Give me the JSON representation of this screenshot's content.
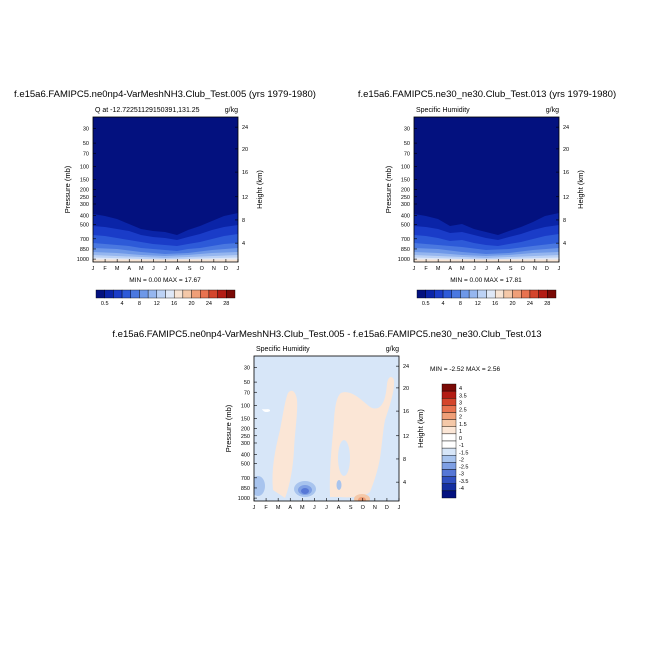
{
  "months": [
    "J",
    "F",
    "M",
    "A",
    "M",
    "J",
    "J",
    "A",
    "S",
    "O",
    "N",
    "D",
    "J"
  ],
  "pressure_ticks": [
    "30",
    "50",
    "70",
    "100",
    "150",
    "200",
    "250",
    "300",
    "400",
    "500",
    "700",
    "850",
    "1000"
  ],
  "height_ticks": [
    "24",
    "20",
    "16",
    "12",
    "8",
    "4"
  ],
  "y_left_label": "Pressure (mb)",
  "y_right_label": "Height (km)",
  "abs_levels": [
    "0.5",
    "4",
    "8",
    "12",
    "16",
    "20",
    "24",
    "28"
  ],
  "abs_colors": [
    "#03117f",
    "#0a24a8",
    "#1a3cc8",
    "#2d5ad8",
    "#4a78e0",
    "#6e98e8",
    "#95b6ef",
    "#bcd2f5",
    "#dfe8f7",
    "#f7e4d4",
    "#f4c8a8",
    "#ef9f78",
    "#e87350",
    "#d4452c",
    "#b31c14",
    "#7a0a06"
  ],
  "diff_levels": [
    "4",
    "3.5",
    "3",
    "2.5",
    "2",
    "1.5",
    "1",
    "0",
    "-1",
    "-1.5",
    "-2",
    "-2.5",
    "-3",
    "-3.5",
    "-4"
  ],
  "diff_colors": [
    "#7a0a06",
    "#b31c14",
    "#d4452c",
    "#e87350",
    "#ef9f78",
    "#f4c8a8",
    "#fbe6d6",
    "#ffffff",
    "#ffffff",
    "#d7e6f8",
    "#a8c4ee",
    "#7e9fe4",
    "#5677d6",
    "#3050c0",
    "#142fa0",
    "#03117f"
  ],
  "panels": [
    {
      "title": "f.e15a6.FAMIPC5.ne0np4-VarMeshNH3.Club_Test.005 (yrs 1979-1980)",
      "subtitle_left": "Q at -12.72251129150391,131.25",
      "subtitle_right": "g/kg",
      "minmax": "MIN =   0.00 MAX =  17.67"
    },
    {
      "title": "f.e15a6.FAMIPC5.ne30_ne30.Club_Test.013 (yrs 1979-1980)",
      "subtitle_left": "Specific Humidity",
      "subtitle_right": "g/kg",
      "minmax": "MIN =   0.00 MAX =  17.81"
    },
    {
      "title": "f.e15a6.FAMIPC5.ne0np4-VarMeshNH3.Club_Test.005 - f.e15a6.FAMIPC5.ne30_ne30.Club_Test.013",
      "subtitle_left": "Specific Humidity",
      "subtitle_right": "g/kg",
      "minmax": "MIN =  -2.52 MAX =   2.56"
    }
  ],
  "chart_data": [
    {
      "type": "heatmap",
      "title": "f.e15a6.FAMIPC5.ne0np4-VarMeshNH3.Club_Test.005 (yrs 1979-1980)",
      "variable": "Q at -12.72251129150391,131.25",
      "units": "g/kg",
      "x": [
        "J",
        "F",
        "M",
        "A",
        "M",
        "J",
        "J",
        "A",
        "S",
        "O",
        "N",
        "D",
        "J"
      ],
      "ylabel": "Pressure (mb)",
      "y2label": "Height (km)",
      "ylim": [
        1000,
        30
      ],
      "contour_levels": [
        0.5,
        2,
        4,
        6,
        8,
        10,
        12,
        14,
        16,
        18,
        20,
        22,
        24,
        26,
        28
      ],
      "min": 0.0,
      "max": 17.67,
      "approx_boundary_pressure_for_0.5gkg": [
        300,
        310,
        340,
        380,
        400,
        430,
        440,
        470,
        430,
        400,
        350,
        320,
        300
      ]
    },
    {
      "type": "heatmap",
      "title": "f.e15a6.FAMIPC5.ne30_ne30.Club_Test.013 (yrs 1979-1980)",
      "variable": "Specific Humidity",
      "units": "g/kg",
      "x": [
        "J",
        "F",
        "M",
        "A",
        "M",
        "J",
        "J",
        "A",
        "S",
        "O",
        "N",
        "D",
        "J"
      ],
      "ylabel": "Pressure (mb)",
      "y2label": "Height (km)",
      "ylim": [
        1000,
        30
      ],
      "contour_levels": [
        0.5,
        2,
        4,
        6,
        8,
        10,
        12,
        14,
        16,
        18,
        20,
        22,
        24,
        26,
        28
      ],
      "min": 0.0,
      "max": 17.81,
      "approx_boundary_pressure_for_0.5gkg": [
        300,
        310,
        340,
        400,
        380,
        420,
        440,
        470,
        440,
        400,
        350,
        310,
        300
      ]
    },
    {
      "type": "heatmap",
      "title": "f.e15a6.FAMIPC5.ne0np4-VarMeshNH3.Club_Test.005 - f.e15a6.FAMIPC5.ne30_ne30.Club_Test.013",
      "variable": "Specific Humidity",
      "units": "g/kg",
      "x": [
        "J",
        "F",
        "M",
        "A",
        "M",
        "J",
        "J",
        "A",
        "S",
        "O",
        "N",
        "D",
        "J"
      ],
      "ylabel": "Pressure (mb)",
      "y2label": "Height (km)",
      "ylim": [
        1000,
        30
      ],
      "contour_levels": [
        -4,
        -3.5,
        -3,
        -2.5,
        -2,
        -1.5,
        -1,
        0,
        1,
        1.5,
        2,
        2.5,
        3,
        3.5,
        4
      ],
      "min": -2.52,
      "max": 2.56
    }
  ]
}
